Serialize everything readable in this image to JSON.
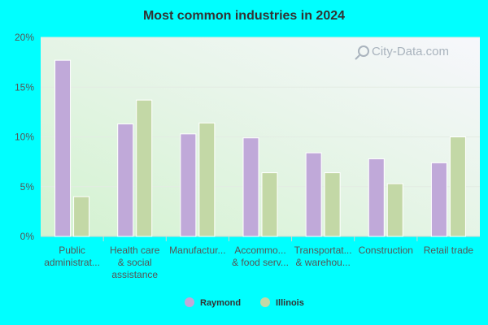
{
  "chart_data": {
    "type": "bar",
    "title": "Most common industries in 2024",
    "xlabel": "",
    "ylabel": "",
    "ylim": [
      0,
      20
    ],
    "yticks": [
      "0%",
      "5%",
      "10%",
      "15%",
      "20%"
    ],
    "categories": [
      [
        "Public",
        "administrat..."
      ],
      [
        "Health care",
        "& social",
        "assistance"
      ],
      [
        "Manufactur..."
      ],
      [
        "Accommo...",
        "& food serv..."
      ],
      [
        "Transportat...",
        "& warehou..."
      ],
      [
        "Construction"
      ],
      [
        "Retail trade"
      ]
    ],
    "series": [
      {
        "name": "Raymond",
        "color": "#c0a9d9",
        "values": [
          17.7,
          11.3,
          10.3,
          9.9,
          8.4,
          7.8,
          7.4
        ]
      },
      {
        "name": "Illinois",
        "color": "#c3d8a6",
        "values": [
          4.0,
          13.7,
          11.4,
          6.4,
          6.4,
          5.3,
          10.0
        ]
      }
    ],
    "grid": true,
    "legend_position": "bottom"
  },
  "watermark": "City-Data.com"
}
